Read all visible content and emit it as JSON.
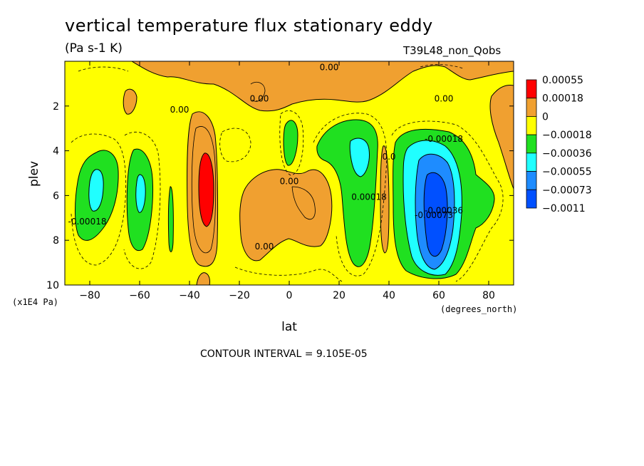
{
  "chart_data": {
    "type": "heatmap",
    "title": "vertical temperature flux stationary eddy",
    "units": "(Pa s-1 K)",
    "run_label": "T39L48_non_Qobs",
    "xlabel": "lat",
    "xunits": "(degrees_north)",
    "ylabel": "plev",
    "yunits": "(x1E4 Pa)",
    "xlim": [
      -90,
      90
    ],
    "ylim": [
      10,
      0
    ],
    "xticks": [
      -80,
      -60,
      -40,
      -20,
      0,
      20,
      40,
      60,
      80
    ],
    "yticks": [
      2,
      4,
      6,
      8,
      10
    ],
    "contour_interval_text": "CONTOUR INTERVAL = 9.105E-05",
    "colorbar": {
      "labels": [
        "0.00055",
        "0.00018",
        "0",
        "−0.00018",
        "−0.00036",
        "−0.00055",
        "−0.00073",
        "−0.0011"
      ],
      "colors": [
        "#ff0000",
        "#f0a030",
        "#ffff00",
        "#20e020",
        "#20ffff",
        "#1e8cff",
        "#0050ff"
      ]
    },
    "contour_labels": [
      {
        "text": "0.00",
        "lat": 16,
        "p": 0.4
      },
      {
        "text": "0.00",
        "lat": -12,
        "p": 1.8
      },
      {
        "text": "0.00",
        "lat": -44,
        "p": 2.3
      },
      {
        "text": "0.00",
        "lat": 62,
        "p": 1.8
      },
      {
        "text": "-0.00018",
        "lat": 62,
        "p": 3.6
      },
      {
        "text": "0.00",
        "lat": 0,
        "p": 5.5
      },
      {
        "text": "0.00",
        "lat": -10,
        "p": 8.4
      },
      {
        "text": "0.00018",
        "lat": 32,
        "p": 6.2
      },
      {
        "text": "0.0",
        "lat": 40,
        "p": 4.4
      },
      {
        "text": "-0.00018",
        "lat": -81,
        "p": 7.3
      },
      {
        "text": "-0.00073",
        "lat": 58,
        "p": 7.0
      },
      {
        "text": "-0.00036",
        "lat": 62,
        "p": 6.8
      }
    ]
  }
}
